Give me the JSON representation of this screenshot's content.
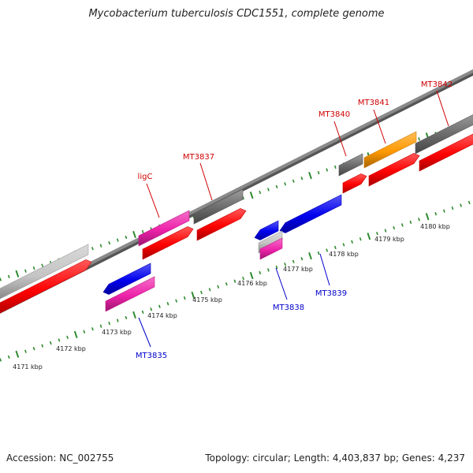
{
  "title": "Mycobacterium tuberculosis CDC1551, complete genome",
  "footer": {
    "accession": "Accession: NC_002755",
    "summary": "Topology: circular; Length: 4,403,837 bp; Genes: 4,237"
  },
  "colors": {
    "backbone": "#8a8a8a",
    "tick": "#2e8b2e",
    "gene_red": "#ff0000",
    "gene_blue": "#0000ee",
    "gene_pink": "#ee22aa",
    "gene_grey": "#6a6a6a",
    "gene_lightgrey": "#c4c4c4",
    "gene_orange": "#ff9900",
    "label_red": "#d00000",
    "label_blue": "#0000cc"
  },
  "scale": {
    "ticks": [
      "4171 kbp",
      "4172 kbp",
      "4173 kbp",
      "4174 kbp",
      "4175 kbp",
      "4176 kbp",
      "4177 kbp",
      "4178 kbp",
      "4179 kbp",
      "4180 kbp"
    ]
  },
  "genes": [
    {
      "name": "MT3835",
      "color": "gene_pink",
      "strand": "reverse"
    },
    {
      "name": "MT3838",
      "color": "gene_pink",
      "strand": "reverse"
    },
    {
      "name": "MT3839",
      "color": "gene_blue",
      "strand": "reverse"
    },
    {
      "name": "ligC",
      "color": "gene_pink",
      "strand": "forward"
    },
    {
      "name": "MT3837",
      "color": "gene_grey",
      "strand": "forward"
    },
    {
      "name": "MT3840",
      "color": "gene_grey",
      "strand": "forward"
    },
    {
      "name": "MT3841",
      "color": "gene_orange",
      "strand": "forward"
    },
    {
      "name": "MT3842",
      "color": "gene_grey",
      "strand": "forward"
    }
  ]
}
